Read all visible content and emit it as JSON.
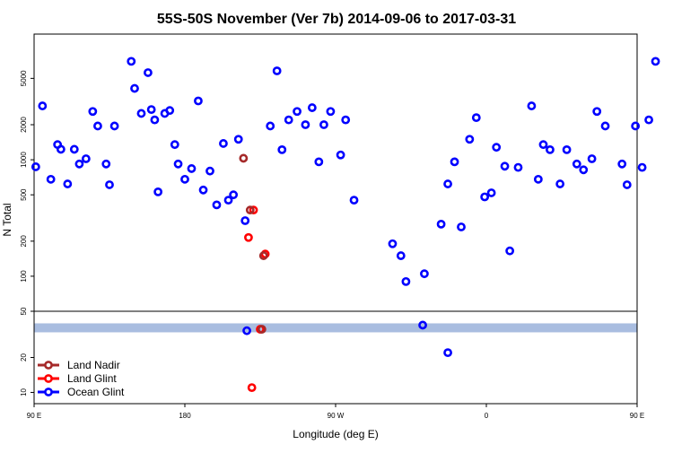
{
  "chart_data": {
    "type": "scatter",
    "title": "55S-50S November (Ver 7b)   2014-09-06 to 2017-03-31",
    "xlabel": "Longitude (deg E)",
    "ylabel": "N Total",
    "xlim": [
      90,
      450
    ],
    "x_ticks": [
      {
        "value": 90,
        "label": "90 E"
      },
      {
        "value": 180,
        "label": "180"
      },
      {
        "value": 270,
        "label": "90 W"
      },
      {
        "value": 360,
        "label": "0"
      },
      {
        "value": 450,
        "label": "90 E"
      },
      {
        "value": 540,
        "label": "180"
      }
    ],
    "y_scale": "log",
    "upper_panel": {
      "ylim": [
        50,
        12000
      ],
      "y_ticks": [
        100,
        200,
        500,
        1000,
        2000,
        5000
      ]
    },
    "lower_panel": {
      "ylim": [
        8,
        50
      ],
      "y_ticks": [
        10,
        20,
        50
      ],
      "band": {
        "value": 36,
        "color": "#a9bde0"
      }
    },
    "legend": {
      "placement": "bottom-left",
      "entries": [
        {
          "name": "Land Nadir",
          "color": "#a52a2a"
        },
        {
          "name": "Land Glint",
          "color": "#ff0000"
        },
        {
          "name": "Ocean Glint",
          "color": "#0000ff"
        }
      ]
    },
    "series": [
      {
        "name": "Ocean Glint",
        "color": "#0000ff",
        "upper_points": [
          [
            91,
            870
          ],
          [
            95,
            2900
          ],
          [
            100,
            680
          ],
          [
            104,
            1350
          ],
          [
            106,
            1230
          ],
          [
            110,
            620
          ],
          [
            114,
            1230
          ],
          [
            117,
            920
          ],
          [
            121,
            1020
          ],
          [
            125,
            2600
          ],
          [
            128,
            1950
          ],
          [
            133,
            920
          ],
          [
            135,
            610
          ],
          [
            138,
            1950
          ],
          [
            148,
            7000
          ],
          [
            150,
            4100
          ],
          [
            154,
            2500
          ],
          [
            158,
            5600
          ],
          [
            160,
            2700
          ],
          [
            162,
            2200
          ],
          [
            164,
            530
          ],
          [
            168,
            2500
          ],
          [
            171,
            2650
          ],
          [
            174,
            1350
          ],
          [
            176,
            920
          ],
          [
            180,
            680
          ],
          [
            184,
            840
          ],
          [
            188,
            3200
          ],
          [
            191,
            550
          ],
          [
            195,
            800
          ],
          [
            199,
            410
          ],
          [
            203,
            1380
          ],
          [
            206,
            450
          ],
          [
            209,
            500
          ],
          [
            212,
            1500
          ],
          [
            216,
            300
          ],
          [
            231,
            1950
          ],
          [
            235,
            5800
          ],
          [
            238,
            1220
          ],
          [
            242,
            2200
          ],
          [
            247,
            2600
          ],
          [
            252,
            2000
          ],
          [
            256,
            2800
          ],
          [
            260,
            960
          ],
          [
            263,
            2000
          ],
          [
            267,
            2600
          ],
          [
            273,
            1100
          ],
          [
            276,
            2200
          ],
          [
            281,
            450
          ],
          [
            304,
            190
          ],
          [
            309,
            150
          ],
          [
            312,
            90
          ],
          [
            323,
            105
          ],
          [
            333,
            280
          ],
          [
            337,
            620
          ],
          [
            341,
            960
          ],
          [
            345,
            265
          ],
          [
            350,
            1500
          ],
          [
            354,
            2300
          ],
          [
            359,
            480
          ],
          [
            363,
            520
          ],
          [
            366,
            1280
          ],
          [
            371,
            880
          ],
          [
            374,
            165
          ],
          [
            379,
            860
          ],
          [
            387,
            2900
          ],
          [
            391,
            680
          ],
          [
            394,
            1350
          ],
          [
            398,
            1220
          ],
          [
            404,
            620
          ],
          [
            408,
            1220
          ],
          [
            414,
            920
          ],
          [
            418,
            820
          ],
          [
            423,
            1020
          ],
          [
            426,
            2600
          ],
          [
            431,
            1950
          ],
          [
            441,
            920
          ],
          [
            444,
            610
          ],
          [
            449,
            1950
          ],
          [
            453,
            860
          ],
          [
            457,
            2200
          ],
          [
            461,
            7000
          ]
        ],
        "lower_points": [
          [
            217,
            34
          ],
          [
            322,
            38
          ],
          [
            337,
            22
          ]
        ]
      },
      {
        "name": "Land Glint",
        "color": "#ff0000",
        "upper_points": [
          [
            218,
            215
          ],
          [
            221,
            370
          ],
          [
            228,
            155
          ]
        ],
        "lower_points": [
          [
            220,
            11
          ],
          [
            225,
            35
          ]
        ]
      },
      {
        "name": "Land Nadir",
        "color": "#a52a2a",
        "upper_points": [
          [
            215,
            1030
          ],
          [
            219,
            370
          ],
          [
            227,
            150
          ]
        ],
        "lower_points": [
          [
            226,
            35
          ]
        ]
      }
    ]
  }
}
